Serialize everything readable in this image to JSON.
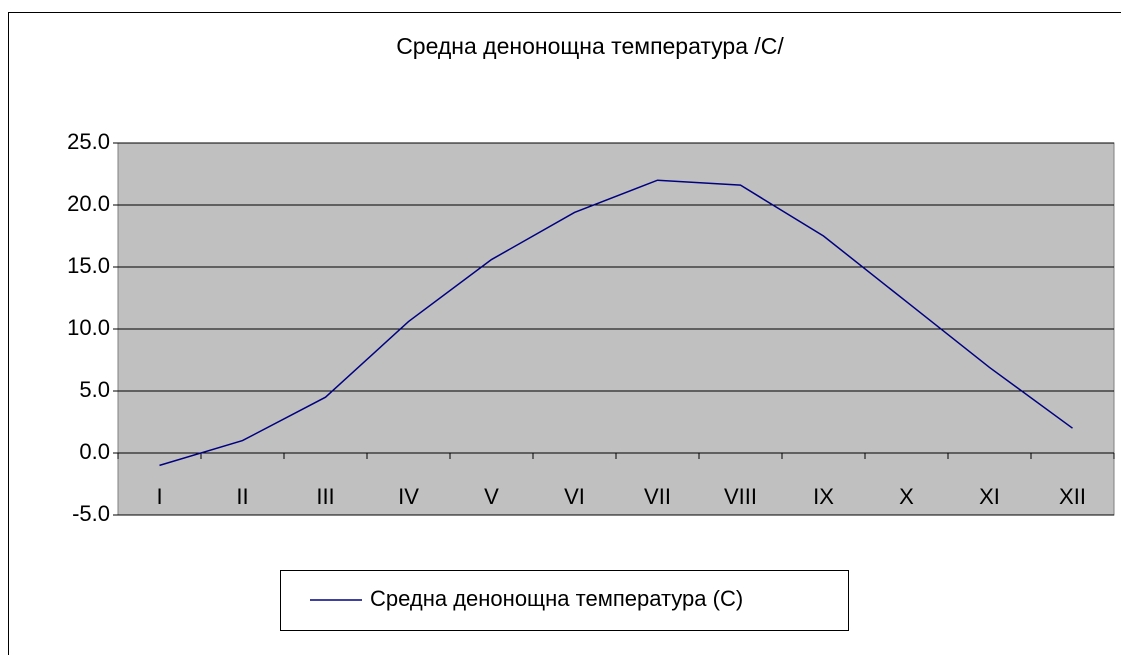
{
  "chart_data": {
    "type": "line",
    "title": "Средна денонощна температура /С/",
    "categories": [
      "I",
      "II",
      "III",
      "IV",
      "V",
      "VI",
      "VII",
      "VIII",
      "IX",
      "X",
      "XI",
      "XII"
    ],
    "series": [
      {
        "name": "Средна денонощна температура (С)",
        "color": "#000080",
        "values": [
          -1.0,
          1.0,
          4.5,
          10.6,
          15.6,
          19.4,
          22.0,
          21.6,
          17.5,
          12.2,
          6.9,
          2.0
        ]
      }
    ],
    "ylim": [
      -5,
      25
    ],
    "yticks": [
      {
        "value": -5,
        "label": "-5.0"
      },
      {
        "value": 0,
        "label": "0.0"
      },
      {
        "value": 5,
        "label": "5.0"
      },
      {
        "value": 10,
        "label": "10.0"
      },
      {
        "value": 15,
        "label": "15.0"
      },
      {
        "value": 20,
        "label": "20.0"
      },
      {
        "value": 25,
        "label": "25.0"
      }
    ],
    "grid": true,
    "legend": "bottom"
  }
}
